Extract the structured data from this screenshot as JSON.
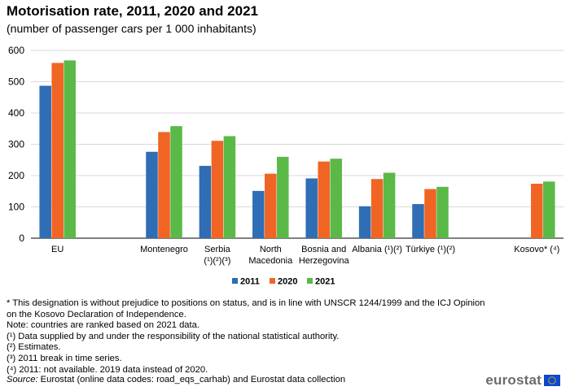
{
  "title": "Motorisation rate, 2011, 2020 and 2021",
  "subtitle": "(number of passenger cars per 1 000 inhabitants)",
  "chart_data": {
    "type": "bar",
    "title": "Motorisation rate, 2011, 2020 and 2021",
    "subtitle": "(number of passenger cars per 1 000 inhabitants)",
    "categories": [
      [
        "EU"
      ],
      [],
      [
        "Montenegro"
      ],
      [
        "Serbia",
        "(¹)(²)(³)"
      ],
      [
        "North",
        "Macedonia"
      ],
      [
        "Bosnia and",
        "Herzegovina"
      ],
      [
        "Albania (¹)(²)"
      ],
      [
        "Türkiye (¹)(²)"
      ],
      [],
      [
        "Kosovo* (⁴)"
      ]
    ],
    "series": [
      {
        "name": "2011",
        "color": "#2f6db5",
        "values": [
          487,
          null,
          276,
          231,
          151,
          191,
          102,
          109,
          null,
          null
        ]
      },
      {
        "name": "2020",
        "color": "#f06424",
        "values": [
          560,
          null,
          339,
          311,
          206,
          245,
          189,
          157,
          null,
          174
        ]
      },
      {
        "name": "2021",
        "color": "#5ab947",
        "values": [
          568,
          null,
          358,
          326,
          260,
          254,
          209,
          164,
          null,
          181
        ]
      }
    ],
    "y_ticks": [
      "0",
      "100",
      "200",
      "300",
      "400",
      "500",
      "600"
    ],
    "ylim": [
      0,
      600
    ],
    "grid": true,
    "legend": "bottom-center"
  },
  "notes": [
    "* This designation is without prejudice to positions on status, and is in line with UNSCR 1244/1999 and the ICJ Opinion on the Kosovo Declaration of Independence.",
    "Note: countries are ranked based on 2021 data.",
    "(¹) Data supplied by and under the responsibility of the national statistical authority.",
    "(²) Estimates.",
    "(³) 2011 break in time series.",
    "(⁴) 2011: not available. 2019 data instead of 2020."
  ],
  "source": {
    "label": "Source:",
    "text": " Eurostat (online data codes: road_eqs_carhab) and Eurostat data collection"
  },
  "logo": {
    "text": "eurostat",
    "flag_color": "#0e47cb",
    "star_color": "#ffcc00"
  }
}
